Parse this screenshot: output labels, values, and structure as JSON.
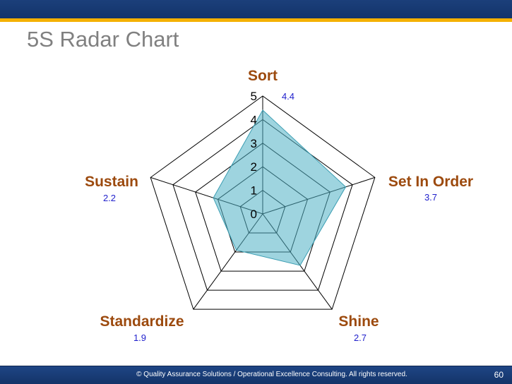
{
  "slide": {
    "title": "5S Radar Chart",
    "page_number": "60",
    "footer": "© Quality Assurance Solutions / Operational Excellence Consulting.  All rights reserved."
  },
  "colors": {
    "header_blue": "#1b3f7a",
    "accent_gold": "#f4b000",
    "axis_label": "#9c4a0e",
    "value_label": "#1f1fcc",
    "fill": "#4fb1c4"
  },
  "chart_data": {
    "type": "radar",
    "categories": [
      "Sort",
      "Set In Order",
      "Shine",
      "Standardize",
      "Sustain"
    ],
    "values": [
      4.4,
      3.7,
      2.7,
      1.9,
      2.2
    ],
    "value_labels": [
      "4.4",
      "3.7",
      "2.7",
      "1.9",
      "2.2"
    ],
    "range": [
      0,
      5
    ],
    "ticks": [
      0,
      1,
      2,
      3,
      4,
      5
    ],
    "tick_labels": [
      "0",
      "1",
      "2",
      "3",
      "4",
      "5"
    ],
    "grid": true
  }
}
